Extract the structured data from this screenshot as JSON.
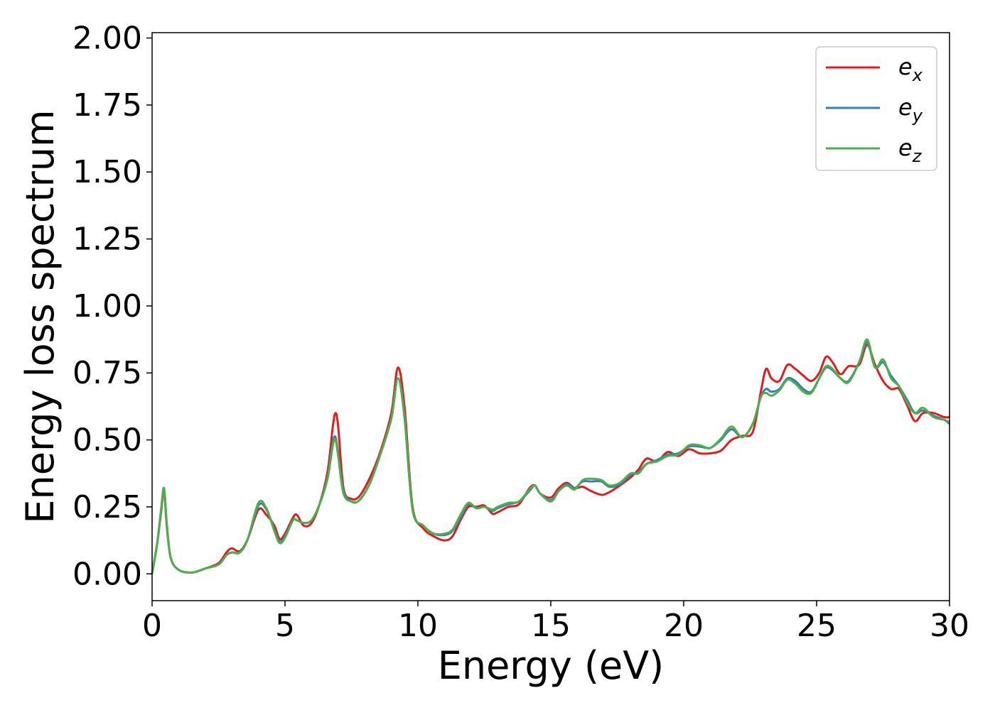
{
  "chart_data": {
    "type": "line",
    "title": "",
    "xlabel": "Energy (eV)",
    "ylabel": "Energy loss spectrum",
    "xlim": [
      0,
      30
    ],
    "ylim": [
      -0.1,
      2.02
    ],
    "xticks": [
      "0",
      "5",
      "10",
      "15",
      "20",
      "25",
      "30"
    ],
    "yticks": [
      "0.00",
      "0.25",
      "0.50",
      "0.75",
      "1.00",
      "1.25",
      "1.50",
      "1.75",
      "2.00"
    ],
    "grid": false,
    "legend_position": "top-right",
    "series": [
      {
        "name": "e",
        "subscript": "x",
        "color": "#e41a1c",
        "x": [
          0,
          0.2,
          0.35,
          0.45,
          0.55,
          0.7,
          1.0,
          1.5,
          2.0,
          2.5,
          2.8,
          3.0,
          3.3,
          3.6,
          4.0,
          4.3,
          4.6,
          4.8,
          5.0,
          5.3,
          5.45,
          5.7,
          6.0,
          6.3,
          6.6,
          6.8,
          6.9,
          7.0,
          7.2,
          7.5,
          7.8,
          8.2,
          8.6,
          9.0,
          9.25,
          9.5,
          9.8,
          10.2,
          10.6,
          11.0,
          11.3,
          11.6,
          11.9,
          12.2,
          12.5,
          12.8,
          13.0,
          13.4,
          13.8,
          14.2,
          14.4,
          14.6,
          15.0,
          15.3,
          15.6,
          15.9,
          16.2,
          16.5,
          16.9,
          17.2,
          17.6,
          18.0,
          18.3,
          18.6,
          19.0,
          19.4,
          19.8,
          20.2,
          20.6,
          21.0,
          21.4,
          21.8,
          22.2,
          22.6,
          22.9,
          23.1,
          23.3,
          23.6,
          23.9,
          24.2,
          24.5,
          24.8,
          25.1,
          25.35,
          25.6,
          25.9,
          26.2,
          26.6,
          26.9,
          27.2,
          27.5,
          27.8,
          28.1,
          28.4,
          28.7,
          29.0,
          29.4,
          29.8,
          30.0
        ],
        "y": [
          0.0,
          0.12,
          0.24,
          0.31,
          0.18,
          0.06,
          0.015,
          0.005,
          0.02,
          0.04,
          0.08,
          0.095,
          0.085,
          0.13,
          0.24,
          0.22,
          0.18,
          0.13,
          0.15,
          0.21,
          0.22,
          0.18,
          0.19,
          0.26,
          0.38,
          0.55,
          0.6,
          0.55,
          0.32,
          0.28,
          0.29,
          0.36,
          0.46,
          0.6,
          0.77,
          0.62,
          0.25,
          0.17,
          0.14,
          0.125,
          0.14,
          0.2,
          0.25,
          0.25,
          0.255,
          0.225,
          0.23,
          0.25,
          0.26,
          0.32,
          0.33,
          0.3,
          0.285,
          0.32,
          0.34,
          0.32,
          0.325,
          0.31,
          0.295,
          0.305,
          0.33,
          0.36,
          0.39,
          0.43,
          0.42,
          0.455,
          0.44,
          0.465,
          0.45,
          0.45,
          0.46,
          0.5,
          0.515,
          0.53,
          0.68,
          0.765,
          0.73,
          0.72,
          0.78,
          0.765,
          0.74,
          0.72,
          0.75,
          0.81,
          0.79,
          0.745,
          0.775,
          0.78,
          0.855,
          0.78,
          0.72,
          0.69,
          0.69,
          0.63,
          0.57,
          0.6,
          0.6,
          0.585,
          0.585
        ]
      },
      {
        "name": "e",
        "subscript": "y",
        "color": "#377eb8",
        "x": [
          0,
          0.2,
          0.35,
          0.45,
          0.55,
          0.7,
          1.0,
          1.5,
          2.0,
          2.5,
          2.8,
          3.0,
          3.3,
          3.6,
          4.0,
          4.3,
          4.6,
          4.8,
          5.0,
          5.3,
          5.45,
          5.7,
          6.0,
          6.3,
          6.6,
          6.8,
          6.9,
          7.0,
          7.2,
          7.5,
          7.8,
          8.2,
          8.6,
          9.0,
          9.25,
          9.5,
          9.8,
          10.2,
          10.6,
          11.0,
          11.3,
          11.6,
          11.9,
          12.2,
          12.5,
          12.8,
          13.0,
          13.4,
          13.8,
          14.2,
          14.4,
          14.6,
          15.0,
          15.3,
          15.6,
          15.9,
          16.2,
          16.5,
          16.9,
          17.2,
          17.6,
          18.0,
          18.3,
          18.6,
          19.0,
          19.4,
          19.8,
          20.2,
          20.6,
          21.0,
          21.4,
          21.8,
          22.2,
          22.6,
          22.9,
          23.1,
          23.3,
          23.6,
          23.9,
          24.2,
          24.5,
          24.8,
          25.1,
          25.35,
          25.6,
          25.9,
          26.2,
          26.6,
          26.9,
          27.2,
          27.5,
          27.8,
          28.1,
          28.4,
          28.7,
          29.0,
          29.4,
          29.8,
          30.0
        ],
        "y": [
          0.0,
          0.12,
          0.25,
          0.32,
          0.19,
          0.06,
          0.015,
          0.005,
          0.02,
          0.035,
          0.07,
          0.08,
          0.08,
          0.13,
          0.255,
          0.24,
          0.165,
          0.12,
          0.14,
          0.2,
          0.2,
          0.19,
          0.2,
          0.26,
          0.36,
          0.49,
          0.51,
          0.45,
          0.31,
          0.27,
          0.275,
          0.34,
          0.45,
          0.58,
          0.73,
          0.58,
          0.24,
          0.18,
          0.15,
          0.145,
          0.16,
          0.21,
          0.26,
          0.245,
          0.25,
          0.235,
          0.245,
          0.26,
          0.27,
          0.31,
          0.33,
          0.3,
          0.275,
          0.31,
          0.335,
          0.32,
          0.345,
          0.345,
          0.345,
          0.325,
          0.335,
          0.37,
          0.38,
          0.41,
          0.425,
          0.445,
          0.45,
          0.475,
          0.475,
          0.47,
          0.5,
          0.54,
          0.51,
          0.56,
          0.66,
          0.69,
          0.68,
          0.69,
          0.73,
          0.72,
          0.69,
          0.68,
          0.73,
          0.77,
          0.76,
          0.73,
          0.72,
          0.79,
          0.865,
          0.77,
          0.79,
          0.74,
          0.7,
          0.65,
          0.6,
          0.61,
          0.59,
          0.575,
          0.56
        ]
      },
      {
        "name": "e",
        "subscript": "z",
        "color": "#4daf4a",
        "x": [
          0,
          0.2,
          0.35,
          0.45,
          0.55,
          0.7,
          1.0,
          1.5,
          2.0,
          2.5,
          2.8,
          3.0,
          3.3,
          3.6,
          4.0,
          4.3,
          4.6,
          4.8,
          5.0,
          5.3,
          5.45,
          5.7,
          6.0,
          6.3,
          6.6,
          6.8,
          6.9,
          7.0,
          7.2,
          7.5,
          7.8,
          8.2,
          8.6,
          9.0,
          9.25,
          9.5,
          9.8,
          10.2,
          10.6,
          11.0,
          11.3,
          11.6,
          11.9,
          12.2,
          12.5,
          12.8,
          13.0,
          13.4,
          13.8,
          14.2,
          14.4,
          14.6,
          15.0,
          15.3,
          15.6,
          15.9,
          16.2,
          16.5,
          16.9,
          17.2,
          17.6,
          18.0,
          18.3,
          18.6,
          19.0,
          19.4,
          19.8,
          20.2,
          20.6,
          21.0,
          21.4,
          21.8,
          22.2,
          22.6,
          22.9,
          23.1,
          23.3,
          23.6,
          23.9,
          24.2,
          24.5,
          24.8,
          25.1,
          25.35,
          25.6,
          25.9,
          26.2,
          26.6,
          26.9,
          27.2,
          27.5,
          27.8,
          28.1,
          28.4,
          28.7,
          29.0,
          29.4,
          29.8,
          30.0
        ],
        "y": [
          0.0,
          0.12,
          0.25,
          0.32,
          0.19,
          0.06,
          0.015,
          0.005,
          0.02,
          0.035,
          0.07,
          0.08,
          0.08,
          0.13,
          0.265,
          0.245,
          0.16,
          0.115,
          0.135,
          0.2,
          0.2,
          0.19,
          0.2,
          0.26,
          0.355,
          0.48,
          0.5,
          0.44,
          0.3,
          0.27,
          0.275,
          0.34,
          0.45,
          0.58,
          0.73,
          0.58,
          0.24,
          0.18,
          0.15,
          0.15,
          0.165,
          0.22,
          0.265,
          0.245,
          0.25,
          0.24,
          0.25,
          0.265,
          0.27,
          0.315,
          0.33,
          0.3,
          0.27,
          0.31,
          0.33,
          0.315,
          0.35,
          0.355,
          0.35,
          0.33,
          0.34,
          0.375,
          0.375,
          0.41,
          0.42,
          0.44,
          0.445,
          0.48,
          0.48,
          0.47,
          0.505,
          0.55,
          0.51,
          0.56,
          0.66,
          0.675,
          0.665,
          0.685,
          0.725,
          0.71,
          0.68,
          0.675,
          0.73,
          0.775,
          0.765,
          0.73,
          0.715,
          0.79,
          0.875,
          0.77,
          0.8,
          0.73,
          0.7,
          0.64,
          0.6,
          0.62,
          0.585,
          0.575,
          0.565
        ]
      }
    ]
  }
}
